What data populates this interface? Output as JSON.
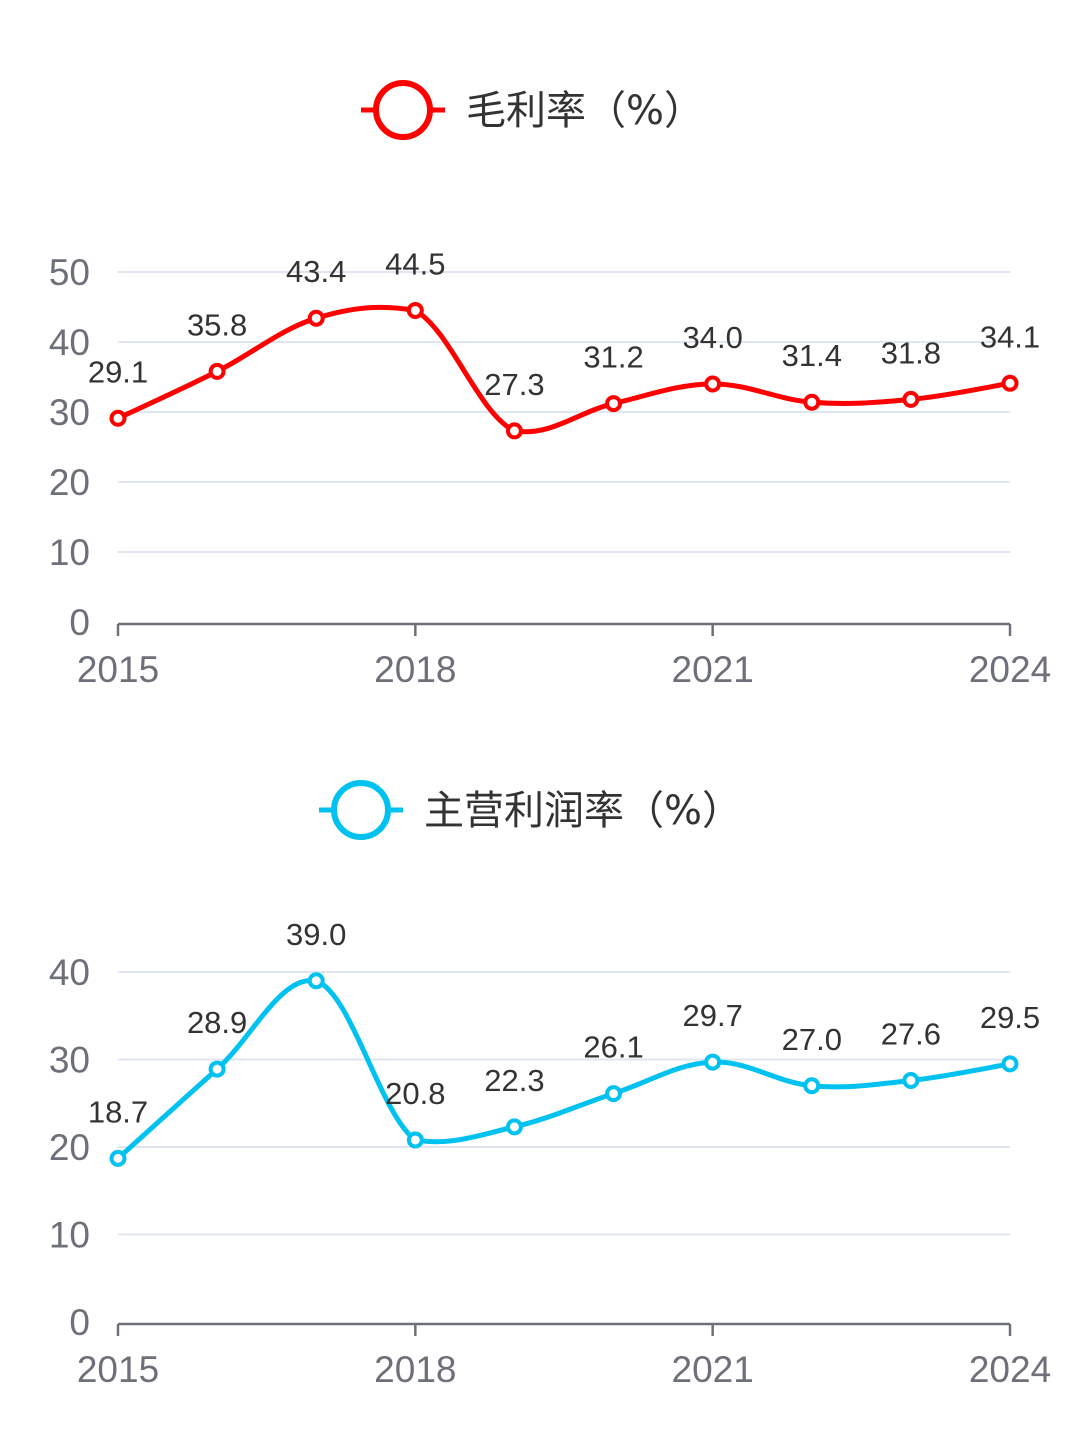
{
  "chart_data": [
    {
      "type": "line",
      "legend": "毛利率（%）",
      "color": "#ff0000",
      "x": [
        "2015",
        "2016",
        "2017",
        "2018",
        "2019",
        "2020",
        "2021",
        "2022",
        "2023",
        "2024"
      ],
      "x_tick_labels": [
        "2015",
        "2018",
        "2021",
        "2024"
      ],
      "values": [
        29.1,
        35.8,
        43.4,
        44.5,
        27.3,
        31.2,
        34.0,
        31.4,
        31.8,
        34.1
      ],
      "value_labels": [
        "29.1",
        "35.8",
        "43.4",
        "44.5",
        "27.3",
        "31.2",
        "34.0",
        "31.4",
        "31.8",
        "34.1"
      ],
      "y_ticks": [
        0,
        10,
        20,
        30,
        40,
        50
      ],
      "ylim": [
        0,
        50
      ],
      "smooth": true,
      "grid": true,
      "legend_position": "top-center"
    },
    {
      "type": "line",
      "legend": "主营利润率（%）",
      "color": "#00c2f0",
      "x": [
        "2015",
        "2016",
        "2017",
        "2018",
        "2019",
        "2020",
        "2021",
        "2022",
        "2023",
        "2024"
      ],
      "x_tick_labels": [
        "2015",
        "2018",
        "2021",
        "2024"
      ],
      "values": [
        18.7,
        28.9,
        39.0,
        20.8,
        22.3,
        26.1,
        29.7,
        27.0,
        27.6,
        29.5
      ],
      "value_labels": [
        "18.7",
        "28.9",
        "39.0",
        "20.8",
        "22.3",
        "26.1",
        "29.7",
        "27.0",
        "27.6",
        "29.5"
      ],
      "y_ticks": [
        0,
        10,
        20,
        30,
        40
      ],
      "ylim": [
        0,
        40
      ],
      "smooth": true,
      "grid": true,
      "legend_position": "top-center"
    }
  ]
}
